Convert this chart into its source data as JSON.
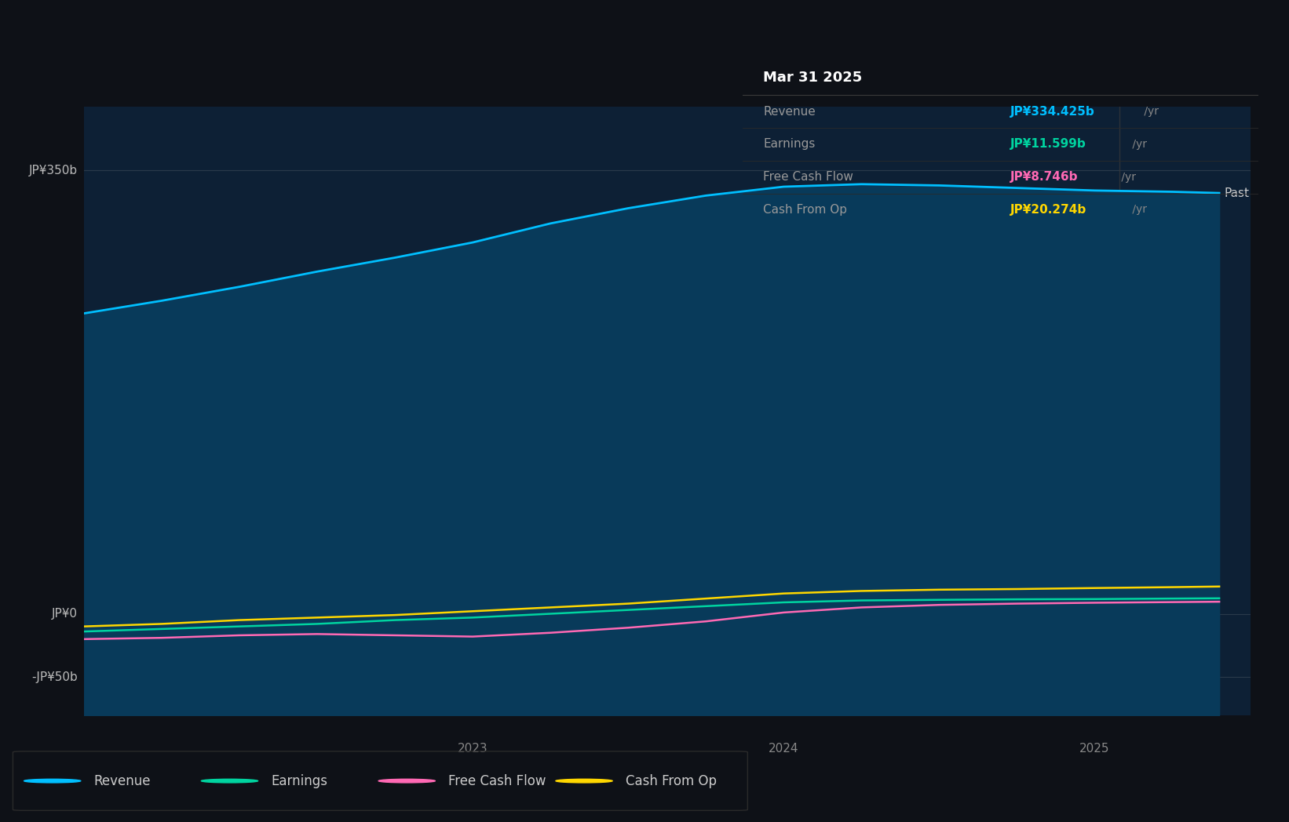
{
  "background_color": "#0e1117",
  "plot_bg_color": "#0d2035",
  "grid_color": "#2a3a4a",
  "ytick_labels": [
    "JP¥350b",
    "JP¥0",
    "-JP¥50b"
  ],
  "ytick_values": [
    350,
    0,
    -50
  ],
  "ylim": [
    -80,
    400
  ],
  "xlim_start": 2021.75,
  "xlim_end": 2025.5,
  "xtick_labels": [
    "2023",
    "2024",
    "2025"
  ],
  "xtick_positions": [
    2023,
    2024,
    2025
  ],
  "series": {
    "Revenue": {
      "color": "#00bfff",
      "fill_color": "#083a5a",
      "values_x": [
        2021.75,
        2022.0,
        2022.25,
        2022.5,
        2022.75,
        2023.0,
        2023.25,
        2023.5,
        2023.75,
        2024.0,
        2024.25,
        2024.5,
        2024.75,
        2025.0,
        2025.25,
        2025.4
      ],
      "values_y": [
        237,
        247,
        258,
        270,
        281,
        293,
        308,
        320,
        330,
        337,
        339,
        338,
        336,
        334,
        333,
        332
      ]
    },
    "Earnings": {
      "color": "#00d4a0",
      "values_x": [
        2021.75,
        2022.0,
        2022.25,
        2022.5,
        2022.75,
        2023.0,
        2023.25,
        2023.5,
        2023.75,
        2024.0,
        2024.25,
        2024.5,
        2024.75,
        2025.0,
        2025.25,
        2025.4
      ],
      "values_y": [
        -14,
        -12,
        -10,
        -8,
        -5,
        -3,
        0,
        3,
        6,
        9,
        10.5,
        11.0,
        11.4,
        11.6,
        12.0,
        12.2
      ]
    },
    "Free Cash Flow": {
      "color": "#ff69b4",
      "values_x": [
        2021.75,
        2022.0,
        2022.25,
        2022.5,
        2022.75,
        2023.0,
        2023.25,
        2023.5,
        2023.75,
        2024.0,
        2024.25,
        2024.5,
        2024.75,
        2025.0,
        2025.25,
        2025.4
      ],
      "values_y": [
        -20,
        -19,
        -17,
        -16,
        -17,
        -18,
        -15,
        -11,
        -6,
        1,
        5,
        7,
        8.0,
        8.7,
        9.2,
        9.5
      ]
    },
    "Cash From Op": {
      "color": "#ffd700",
      "values_x": [
        2021.75,
        2022.0,
        2022.25,
        2022.5,
        2022.75,
        2023.0,
        2023.25,
        2023.5,
        2023.75,
        2024.0,
        2024.25,
        2024.5,
        2024.75,
        2025.0,
        2025.25,
        2025.4
      ],
      "values_y": [
        -10,
        -8,
        -5,
        -3,
        -1,
        2,
        5,
        8,
        12,
        16,
        18,
        19,
        19.5,
        20.3,
        21.0,
        21.5
      ]
    }
  },
  "tooltip": {
    "title": "Mar 31 2025",
    "bg_color": "#111111",
    "border_color": "#2a2a2a",
    "rows": [
      {
        "label": "Revenue",
        "value": "JP¥334.425b",
        "unit": " /yr",
        "value_color": "#00bfff"
      },
      {
        "label": "Earnings",
        "value": "JP¥11.599b",
        "unit": " /yr",
        "value_color": "#00d4a0"
      },
      {
        "label": "Free Cash Flow",
        "value": "JP¥8.746b",
        "unit": " /yr",
        "value_color": "#ff69b4"
      },
      {
        "label": "Cash From Op",
        "value": "JP¥20.274b",
        "unit": " /yr",
        "value_color": "#ffd700"
      }
    ]
  },
  "past_label": "Past",
  "legend": [
    {
      "label": "Revenue",
      "color": "#00bfff"
    },
    {
      "label": "Earnings",
      "color": "#00d4a0"
    },
    {
      "label": "Free Cash Flow",
      "color": "#ff69b4"
    },
    {
      "label": "Cash From Op",
      "color": "#ffd700"
    }
  ],
  "vertical_line_x": 2025.08,
  "vertical_line_color": "#3a3a3a"
}
